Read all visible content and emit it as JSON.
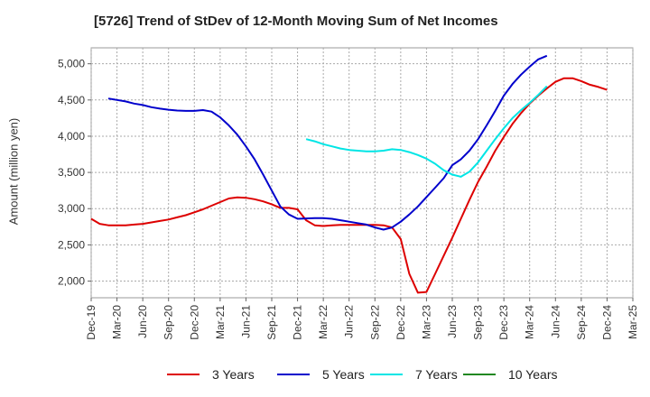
{
  "chart_data": {
    "type": "line",
    "title": "[5726]  Trend of StDev of 12-Month Moving Sum of Net Incomes",
    "xlabel": "",
    "ylabel": "Amount (million yen)",
    "ylim": [
      1770,
      5220
    ],
    "y_ticks": [
      2000,
      2500,
      3000,
      3500,
      4000,
      4500,
      5000
    ],
    "y_tick_labels": [
      "2,000",
      "2,500",
      "3,000",
      "3,500",
      "4,000",
      "4,500",
      "5,000"
    ],
    "x_tick_labels": [
      "Dec-19",
      "Mar-20",
      "Jun-20",
      "Sep-20",
      "Dec-20",
      "Mar-21",
      "Jun-21",
      "Sep-21",
      "Dec-21",
      "Mar-22",
      "Jun-22",
      "Sep-22",
      "Dec-22",
      "Mar-23",
      "Jun-23",
      "Sep-23",
      "Dec-23",
      "Mar-24",
      "Jun-24",
      "Sep-24",
      "Dec-24",
      "Mar-25"
    ],
    "grid": true,
    "legend_position": "bottom",
    "series": [
      {
        "name": "3 Years",
        "color": "#dd0000",
        "values": [
          [
            0,
            2860
          ],
          [
            1,
            2790
          ],
          [
            2,
            2770
          ],
          [
            3,
            2770
          ],
          [
            4,
            2770
          ],
          [
            5,
            2780
          ],
          [
            6,
            2790
          ],
          [
            7,
            2810
          ],
          [
            8,
            2830
          ],
          [
            9,
            2850
          ],
          [
            10,
            2880
          ],
          [
            11,
            2910
          ],
          [
            12,
            2950
          ],
          [
            13,
            2990
          ],
          [
            14,
            3040
          ],
          [
            15,
            3090
          ],
          [
            16,
            3140
          ],
          [
            17,
            3155
          ],
          [
            18,
            3150
          ],
          [
            19,
            3130
          ],
          [
            20,
            3100
          ],
          [
            21,
            3060
          ],
          [
            22,
            3010
          ],
          [
            23,
            3010
          ],
          [
            24,
            2990
          ],
          [
            25,
            2840
          ],
          [
            26,
            2770
          ],
          [
            27,
            2760
          ],
          [
            28,
            2770
          ],
          [
            29,
            2775
          ],
          [
            30,
            2775
          ],
          [
            31,
            2775
          ],
          [
            32,
            2775
          ],
          [
            33,
            2775
          ],
          [
            34,
            2770
          ],
          [
            35,
            2740
          ],
          [
            36,
            2580
          ],
          [
            37,
            2100
          ],
          [
            38,
            1840
          ],
          [
            39,
            1850
          ],
          [
            40,
            2100
          ],
          [
            41,
            2350
          ],
          [
            42,
            2600
          ],
          [
            43,
            2860
          ],
          [
            44,
            3120
          ],
          [
            45,
            3370
          ],
          [
            46,
            3580
          ],
          [
            47,
            3800
          ],
          [
            48,
            3990
          ],
          [
            49,
            4170
          ],
          [
            50,
            4320
          ],
          [
            51,
            4450
          ],
          [
            52,
            4560
          ],
          [
            53,
            4660
          ],
          [
            54,
            4750
          ],
          [
            55,
            4800
          ],
          [
            56,
            4800
          ],
          [
            57,
            4760
          ],
          [
            58,
            4710
          ],
          [
            59,
            4680
          ],
          [
            60,
            4640
          ]
        ]
      },
      {
        "name": "5 Years",
        "color": "#0000cc",
        "values": [
          [
            2,
            4520
          ],
          [
            3,
            4500
          ],
          [
            4,
            4480
          ],
          [
            5,
            4450
          ],
          [
            6,
            4430
          ],
          [
            7,
            4400
          ],
          [
            8,
            4380
          ],
          [
            9,
            4365
          ],
          [
            10,
            4355
          ],
          [
            11,
            4350
          ],
          [
            12,
            4350
          ],
          [
            13,
            4360
          ],
          [
            14,
            4340
          ],
          [
            15,
            4260
          ],
          [
            16,
            4150
          ],
          [
            17,
            4020
          ],
          [
            18,
            3860
          ],
          [
            19,
            3680
          ],
          [
            20,
            3470
          ],
          [
            21,
            3250
          ],
          [
            22,
            3030
          ],
          [
            23,
            2920
          ],
          [
            24,
            2860
          ],
          [
            25,
            2865
          ],
          [
            26,
            2870
          ],
          [
            27,
            2870
          ],
          [
            28,
            2860
          ],
          [
            29,
            2840
          ],
          [
            30,
            2820
          ],
          [
            31,
            2800
          ],
          [
            32,
            2780
          ],
          [
            33,
            2740
          ],
          [
            34,
            2710
          ],
          [
            35,
            2740
          ],
          [
            36,
            2820
          ],
          [
            37,
            2920
          ],
          [
            38,
            3030
          ],
          [
            39,
            3160
          ],
          [
            40,
            3290
          ],
          [
            41,
            3420
          ],
          [
            42,
            3600
          ],
          [
            43,
            3680
          ],
          [
            44,
            3800
          ],
          [
            45,
            3960
          ],
          [
            46,
            4150
          ],
          [
            47,
            4350
          ],
          [
            48,
            4560
          ],
          [
            49,
            4720
          ],
          [
            50,
            4850
          ],
          [
            51,
            4960
          ],
          [
            52,
            5060
          ],
          [
            53,
            5110
          ]
        ]
      },
      {
        "name": "7 Years",
        "color": "#00e5e5",
        "values": [
          [
            25,
            3960
          ],
          [
            26,
            3930
          ],
          [
            27,
            3890
          ],
          [
            28,
            3860
          ],
          [
            29,
            3830
          ],
          [
            30,
            3810
          ],
          [
            31,
            3800
          ],
          [
            32,
            3790
          ],
          [
            33,
            3790
          ],
          [
            34,
            3800
          ],
          [
            35,
            3820
          ],
          [
            36,
            3810
          ],
          [
            37,
            3780
          ],
          [
            38,
            3740
          ],
          [
            39,
            3690
          ],
          [
            40,
            3620
          ],
          [
            41,
            3530
          ],
          [
            42,
            3470
          ],
          [
            43,
            3440
          ],
          [
            44,
            3510
          ],
          [
            45,
            3640
          ],
          [
            46,
            3800
          ],
          [
            47,
            3960
          ],
          [
            48,
            4110
          ],
          [
            49,
            4250
          ],
          [
            50,
            4360
          ],
          [
            51,
            4460
          ],
          [
            52,
            4570
          ],
          [
            53,
            4690
          ]
        ]
      },
      {
        "name": "10 Years",
        "color": "#228822",
        "values": []
      }
    ]
  }
}
